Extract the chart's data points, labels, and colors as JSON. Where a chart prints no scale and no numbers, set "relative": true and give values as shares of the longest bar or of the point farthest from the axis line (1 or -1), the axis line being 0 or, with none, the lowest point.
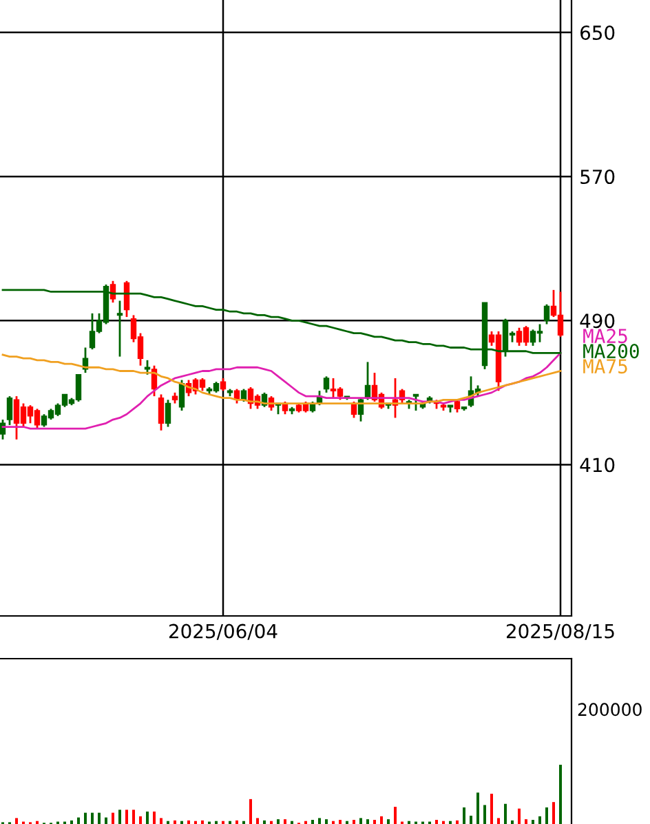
{
  "chart_data": [
    {
      "type": "candlestick",
      "categories": [
        null,
        null,
        null,
        null,
        null,
        null,
        null,
        null,
        null,
        null,
        null,
        null,
        null,
        null,
        null,
        null,
        null,
        null,
        null,
        null,
        null,
        null,
        null,
        null,
        null,
        null,
        null,
        null,
        null,
        null,
        null,
        null,
        "2025/06/04",
        null,
        null,
        null,
        null,
        null,
        null,
        null,
        null,
        null,
        null,
        null,
        null,
        null,
        null,
        null,
        null,
        null,
        null,
        null,
        null,
        null,
        null,
        null,
        null,
        null,
        null,
        null,
        null,
        null,
        null,
        null,
        null,
        null,
        null,
        null,
        null,
        null,
        null,
        null,
        null,
        null,
        null,
        null,
        null,
        null,
        null,
        null,
        null,
        "2025/08/15"
      ],
      "ohlc": [
        [
          427,
          435,
          424,
          433
        ],
        [
          435,
          448,
          432,
          447
        ],
        [
          446,
          448,
          424,
          433
        ],
        [
          442,
          444,
          431,
          433
        ],
        [
          442,
          443,
          433,
          437
        ],
        [
          440,
          441,
          430,
          432
        ],
        [
          432,
          438,
          431,
          437
        ],
        [
          436,
          441,
          435,
          440
        ],
        [
          438,
          444,
          437,
          443
        ],
        [
          443,
          449,
          442,
          449
        ],
        [
          444,
          447,
          443,
          446
        ],
        [
          446,
          460,
          445,
          460
        ],
        [
          463,
          475,
          461,
          469
        ],
        [
          475,
          494,
          474,
          484
        ],
        [
          484,
          494,
          483,
          490
        ],
        [
          489,
          510,
          488,
          509
        ],
        [
          510,
          512,
          500,
          502
        ],
        [
          493,
          501,
          470,
          494
        ],
        [
          511,
          512,
          492,
          496
        ],
        [
          491,
          493,
          478,
          480
        ],
        [
          481,
          483,
          465,
          469
        ],
        [
          463,
          468,
          460,
          464
        ],
        [
          463,
          465,
          448,
          452
        ],
        [
          447,
          449,
          429,
          433
        ],
        [
          433,
          446,
          431,
          444
        ],
        [
          448,
          450,
          444,
          446
        ],
        [
          442,
          457,
          440,
          455
        ],
        [
          455,
          457,
          448,
          450
        ],
        [
          457,
          458,
          449,
          451
        ],
        [
          457,
          458,
          451,
          453
        ],
        [
          451,
          453,
          449,
          452
        ],
        [
          451,
          456,
          450,
          455
        ],
        [
          456,
          458,
          451,
          452
        ],
        [
          450,
          452,
          448,
          451
        ],
        [
          451,
          452,
          444,
          446
        ],
        [
          446,
          452,
          445,
          451
        ],
        [
          452,
          453,
          441,
          444
        ],
        [
          448,
          449,
          441,
          443
        ],
        [
          443,
          450,
          442,
          449
        ],
        [
          447,
          448,
          440,
          442
        ],
        [
          443,
          444,
          438,
          444
        ],
        [
          444,
          445,
          438,
          440
        ],
        [
          440,
          442,
          438,
          441
        ],
        [
          443,
          444,
          439,
          440
        ],
        [
          444,
          445,
          439,
          440
        ],
        [
          440,
          445,
          439,
          444
        ],
        [
          444,
          451,
          443,
          448
        ],
        [
          452,
          459,
          450,
          458
        ],
        [
          452,
          458,
          447,
          451
        ],
        [
          452,
          453,
          446,
          448
        ],
        [
          447,
          448,
          446,
          448
        ],
        [
          444,
          445,
          436,
          438
        ],
        [
          438,
          447,
          434,
          446
        ],
        [
          447,
          467,
          446,
          454
        ],
        [
          454,
          461,
          445,
          446
        ],
        [
          449,
          450,
          441,
          442
        ],
        [
          443,
          444,
          441,
          444
        ],
        [
          446,
          458,
          436,
          443
        ],
        [
          451,
          452,
          444,
          446
        ],
        [
          444,
          446,
          441,
          445
        ],
        [
          448,
          449,
          440,
          449
        ],
        [
          442,
          445,
          441,
          444
        ],
        [
          445,
          448,
          444,
          447
        ],
        [
          445,
          446,
          441,
          444
        ],
        [
          443,
          444,
          440,
          442
        ],
        [
          442,
          443,
          439,
          443
        ],
        [
          445,
          446,
          439,
          441
        ],
        [
          441,
          442,
          440,
          442
        ],
        [
          443,
          459,
          442,
          451
        ],
        [
          450,
          454,
          448,
          452
        ],
        [
          465,
          500,
          463,
          500
        ],
        [
          482,
          484,
          476,
          478
        ],
        [
          482,
          484,
          451,
          456
        ],
        [
          473,
          491,
          470,
          490
        ],
        [
          482,
          484,
          478,
          483
        ],
        [
          484,
          486,
          476,
          478
        ],
        [
          486,
          487,
          476,
          478
        ],
        [
          478,
          485,
          476,
          484
        ],
        [
          483,
          488,
          478,
          484
        ],
        [
          490,
          499,
          488,
          498
        ],
        [
          498,
          507,
          492,
          493
        ],
        [
          493,
          506,
          481,
          482
        ]
      ],
      "colors": [
        "#006600",
        "#006600",
        "#ff0000",
        "#ff0000",
        "#ff0000",
        "#ff0000",
        "#006600",
        "#006600",
        "#006600",
        "#006600",
        "#006600",
        "#006600",
        "#006600",
        "#006600",
        "#006600",
        "#006600",
        "#ff0000",
        "#006600",
        "#ff0000",
        "#ff0000",
        "#ff0000",
        "#006600",
        "#ff0000",
        "#ff0000",
        "#006600",
        "#ff0000",
        "#006600",
        "#ff0000",
        "#ff0000",
        "#ff0000",
        "#006600",
        "#006600",
        "#ff0000",
        "#006600",
        "#ff0000",
        "#006600",
        "#ff0000",
        "#ff0000",
        "#006600",
        "#ff0000",
        "#006600",
        "#ff0000",
        "#006600",
        "#ff0000",
        "#ff0000",
        "#006600",
        "#006600",
        "#006600",
        "#ff0000",
        "#ff0000",
        "#006600",
        "#ff0000",
        "#006600",
        "#006600",
        "#ff0000",
        "#ff0000",
        "#006600",
        "#ff0000",
        "#ff0000",
        "#006600",
        "#006600",
        "#006600",
        "#006600",
        "#ff0000",
        "#ff0000",
        "#006600",
        "#ff0000",
        "#006600",
        "#006600",
        "#006600",
        "#006600",
        "#ff0000",
        "#ff0000",
        "#006600",
        "#006600",
        "#ff0000",
        "#ff0000",
        "#006600",
        "#006600",
        "#006600",
        "#ff0000",
        "#ff0000"
      ],
      "series": [
        {
          "name": "MA25",
          "type": "line",
          "color": "#e020b0",
          "values": [
            431,
            431,
            431,
            431,
            430,
            430,
            430,
            430,
            430,
            430,
            430,
            430,
            430,
            431,
            432,
            433,
            435,
            436,
            438,
            441,
            444,
            448,
            451,
            454,
            456,
            458,
            459,
            460,
            461,
            462,
            462,
            463,
            463,
            463,
            464,
            464,
            464,
            464,
            463,
            462,
            459,
            456,
            453,
            450,
            448,
            448,
            448,
            447,
            447,
            447,
            447,
            447,
            447,
            447,
            447,
            447,
            447,
            447,
            447,
            447,
            446,
            445,
            445,
            445,
            444,
            445,
            446,
            446,
            447,
            448,
            449,
            450,
            452,
            454,
            455,
            456,
            458,
            459,
            461,
            464,
            468,
            472
          ]
        },
        {
          "name": "MA200",
          "type": "line",
          "color": "#006400",
          "values": [
            507,
            507,
            507,
            507,
            507,
            507,
            507,
            506,
            506,
            506,
            506,
            506,
            506,
            506,
            506,
            506,
            505,
            505,
            505,
            505,
            505,
            504,
            503,
            503,
            502,
            501,
            500,
            499,
            498,
            498,
            497,
            496,
            496,
            495,
            495,
            494,
            494,
            493,
            493,
            492,
            492,
            491,
            490,
            490,
            489,
            488,
            487,
            487,
            486,
            485,
            484,
            483,
            483,
            482,
            481,
            481,
            480,
            479,
            479,
            478,
            478,
            477,
            477,
            476,
            476,
            475,
            475,
            475,
            474,
            474,
            474,
            474,
            473,
            473,
            473,
            473,
            473,
            472,
            472,
            472,
            472,
            472
          ]
        },
        {
          "name": "MA75",
          "type": "line",
          "color": "#f0a020",
          "values": [
            471,
            470,
            470,
            469,
            469,
            468,
            468,
            467,
            467,
            466,
            466,
            465,
            464,
            464,
            464,
            463,
            463,
            462,
            462,
            462,
            461,
            461,
            461,
            459,
            458,
            456,
            455,
            453,
            452,
            450,
            449,
            448,
            447,
            447,
            446,
            446,
            445,
            445,
            444,
            444,
            444,
            444,
            444,
            444,
            444,
            444,
            444,
            444,
            444,
            444,
            444,
            444,
            444,
            444,
            444,
            444,
            444,
            444,
            444,
            444,
            444,
            444,
            445,
            445,
            446,
            446,
            446,
            447,
            448,
            450,
            451,
            452,
            453,
            454,
            455,
            456,
            457,
            458,
            459,
            460,
            461,
            462
          ]
        }
      ],
      "ylim": [
        326,
        668
      ],
      "yticks": [
        410,
        490,
        570,
        650
      ],
      "grid": true,
      "legend": "right"
    },
    {
      "type": "bar",
      "categories": [
        null,
        null,
        null,
        null,
        null,
        null,
        null,
        null,
        null,
        null,
        null,
        null,
        null,
        null,
        null,
        null,
        null,
        null,
        null,
        null,
        null,
        null,
        null,
        null,
        null,
        null,
        null,
        null,
        null,
        null,
        null,
        null,
        null,
        null,
        null,
        null,
        null,
        null,
        null,
        null,
        null,
        null,
        null,
        null,
        null,
        null,
        null,
        null,
        null,
        null,
        null,
        null,
        null,
        null,
        null,
        null,
        null,
        null,
        null,
        null,
        null,
        null,
        null,
        null,
        null,
        null,
        null,
        null,
        null,
        null,
        null,
        null,
        null,
        null,
        null,
        null,
        null,
        null,
        null,
        null,
        null,
        null
      ],
      "values": [
        0.03,
        0.03,
        0.1,
        0.04,
        0.03,
        0.05,
        0.02,
        0.02,
        0.04,
        0.04,
        0.06,
        0.11,
        0.19,
        0.19,
        0.19,
        0.11,
        0.19,
        0.24,
        0.24,
        0.24,
        0.13,
        0.21,
        0.21,
        0.1,
        0.05,
        0.06,
        0.05,
        0.06,
        0.05,
        0.06,
        0.04,
        0.05,
        0.05,
        0.05,
        0.06,
        0.05,
        0.42,
        0.1,
        0.06,
        0.05,
        0.08,
        0.08,
        0.05,
        0.02,
        0.05,
        0.07,
        0.1,
        0.08,
        0.05,
        0.07,
        0.05,
        0.07,
        0.1,
        0.08,
        0.07,
        0.13,
        0.08,
        0.29,
        0.04,
        0.05,
        0.04,
        0.04,
        0.04,
        0.07,
        0.05,
        0.05,
        0.06,
        0.28,
        0.14,
        0.53,
        0.32,
        0.51,
        0.1,
        0.34,
        0.06,
        0.26,
        0.08,
        0.07,
        0.13,
        0.28,
        0.37,
        1
      ],
      "relative": true,
      "annotations": [
        "200000"
      ],
      "colors": [
        "#006600",
        "#006600",
        "#ff0000",
        "#ff0000",
        "#ff0000",
        "#ff0000",
        "#006600",
        "#006600",
        "#006600",
        "#006600",
        "#006600",
        "#006600",
        "#006600",
        "#006600",
        "#006600",
        "#006600",
        "#ff0000",
        "#006600",
        "#ff0000",
        "#ff0000",
        "#ff0000",
        "#006600",
        "#ff0000",
        "#ff0000",
        "#006600",
        "#ff0000",
        "#006600",
        "#ff0000",
        "#ff0000",
        "#ff0000",
        "#006600",
        "#006600",
        "#ff0000",
        "#006600",
        "#ff0000",
        "#006600",
        "#ff0000",
        "#ff0000",
        "#006600",
        "#ff0000",
        "#006600",
        "#ff0000",
        "#006600",
        "#ff0000",
        "#ff0000",
        "#006600",
        "#006600",
        "#006600",
        "#ff0000",
        "#ff0000",
        "#006600",
        "#ff0000",
        "#006600",
        "#006600",
        "#ff0000",
        "#ff0000",
        "#006600",
        "#ff0000",
        "#ff0000",
        "#006600",
        "#006600",
        "#006600",
        "#006600",
        "#ff0000",
        "#ff0000",
        "#006600",
        "#ff0000",
        "#006600",
        "#006600",
        "#006600",
        "#006600",
        "#ff0000",
        "#ff0000",
        "#006600",
        "#006600",
        "#ff0000",
        "#ff0000",
        "#006600",
        "#006600",
        "#006600",
        "#ff0000",
        "#006600"
      ],
      "grid": false
    }
  ]
}
